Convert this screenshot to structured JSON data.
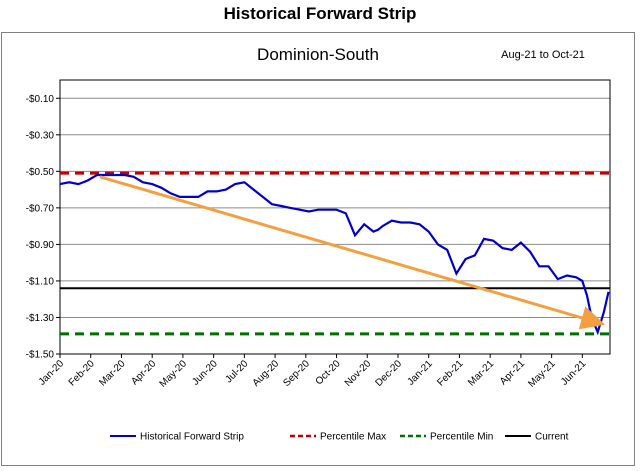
{
  "title": "Historical Forward Strip",
  "chart_data": {
    "type": "line",
    "subtitle": "Dominion-South",
    "range_label": "Aug-21 to Oct-21",
    "ylim": [
      -1.5,
      0.0
    ],
    "yticks": [
      -0.1,
      -0.3,
      -0.5,
      -0.7,
      -0.9,
      -1.1,
      -1.3,
      -1.5
    ],
    "ytick_labels": [
      "-$0.10",
      "-$0.30",
      "-$0.50",
      "-$0.70",
      "-$0.90",
      "-$1.10",
      "-$1.30",
      "-$1.50"
    ],
    "xlim": [
      0,
      17.9
    ],
    "xtick_labels": [
      "Jan-20",
      "Feb-20",
      "Mar-20",
      "Apr-20",
      "May-20",
      "Jun-20",
      "Jul-20",
      "Aug-20",
      "Sep-20",
      "Oct-20",
      "Nov-20",
      "Dec-20",
      "Jan-21",
      "Feb-21",
      "Mar-21",
      "Apr-21",
      "May-21",
      "Jun-21"
    ],
    "grid": true,
    "legend_position": "bottom",
    "series": [
      {
        "name": "Historical Forward Strip",
        "color": "#0000cc",
        "style": "solid",
        "x": [
          0,
          0.3,
          0.6,
          0.9,
          1.2,
          1.5,
          1.8,
          2.1,
          2.4,
          2.7,
          3.0,
          3.3,
          3.6,
          3.9,
          4.2,
          4.5,
          4.8,
          5.1,
          5.4,
          5.7,
          6.0,
          6.3,
          6.6,
          6.9,
          7.2,
          7.5,
          7.8,
          8.1,
          8.4,
          8.7,
          9.0,
          9.3,
          9.6,
          9.9,
          10.2,
          10.35,
          10.5,
          10.8,
          11.1,
          11.4,
          11.7,
          12.0,
          12.3,
          12.6,
          12.9,
          13.2,
          13.5,
          13.8,
          14.1,
          14.4,
          14.7,
          15.0,
          15.3,
          15.6,
          15.9,
          16.2,
          16.5,
          16.8,
          17.0,
          17.15,
          17.3,
          17.5,
          17.7,
          17.85
        ],
        "y": [
          -0.57,
          -0.56,
          -0.57,
          -0.55,
          -0.52,
          -0.52,
          -0.52,
          -0.52,
          -0.53,
          -0.56,
          -0.57,
          -0.59,
          -0.62,
          -0.64,
          -0.64,
          -0.64,
          -0.61,
          -0.61,
          -0.6,
          -0.57,
          -0.56,
          -0.6,
          -0.64,
          -0.68,
          -0.69,
          -0.7,
          -0.71,
          -0.72,
          -0.71,
          -0.71,
          -0.71,
          -0.73,
          -0.85,
          -0.79,
          -0.83,
          -0.82,
          -0.8,
          -0.77,
          -0.78,
          -0.78,
          -0.79,
          -0.83,
          -0.9,
          -0.93,
          -1.06,
          -0.98,
          -0.96,
          -0.87,
          -0.88,
          -0.92,
          -0.93,
          -0.89,
          -0.94,
          -1.02,
          -1.02,
          -1.09,
          -1.07,
          -1.08,
          -1.1,
          -1.18,
          -1.3,
          -1.38,
          -1.27,
          -1.16
        ]
      },
      {
        "name": "Percentile Max",
        "color": "#c00000",
        "style": "dashed",
        "value": -0.51
      },
      {
        "name": "Percentile Min",
        "color": "#007000",
        "style": "dashed",
        "value": -1.39
      },
      {
        "name": "Current",
        "color": "#000000",
        "style": "solid",
        "value": -1.14
      }
    ],
    "annotations": [
      {
        "type": "arrow",
        "color": "#f4a040",
        "from": [
          1.3,
          -0.53
        ],
        "to": [
          17.55,
          -1.33
        ]
      }
    ]
  }
}
